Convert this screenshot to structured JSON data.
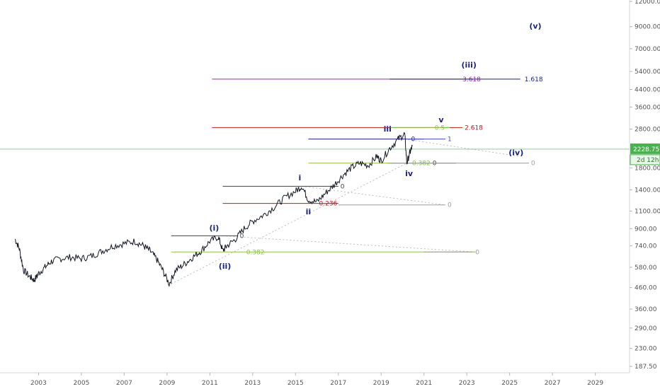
{
  "chart_data": {
    "type": "line",
    "x_axis": {
      "type": "year",
      "range": [
        2001.2,
        2030.6
      ],
      "ticks": [
        {
          "v": 2003,
          "label": "2003"
        },
        {
          "v": 2005,
          "label": "2005"
        },
        {
          "v": 2007,
          "label": "2007"
        },
        {
          "v": 2009,
          "label": "2009"
        },
        {
          "v": 2011,
          "label": "2011"
        },
        {
          "v": 2013,
          "label": "2013"
        },
        {
          "v": 2015,
          "label": "2015"
        },
        {
          "v": 2017,
          "label": "2017"
        },
        {
          "v": 2019,
          "label": "2019"
        },
        {
          "v": 2021,
          "label": "2021"
        },
        {
          "v": 2023,
          "label": "2023"
        },
        {
          "v": 2025,
          "label": "2025"
        },
        {
          "v": 2027,
          "label": "2027"
        },
        {
          "v": 2029,
          "label": "2029"
        }
      ]
    },
    "y_axis": {
      "scale": "log",
      "position": "right",
      "range": [
        180,
        12000
      ],
      "ticks": [
        {
          "v": 12000,
          "label": "12000.00"
        },
        {
          "v": 9000,
          "label": "9000.00"
        },
        {
          "v": 7000,
          "label": "7000.00"
        },
        {
          "v": 5400,
          "label": "5400.00"
        },
        {
          "v": 4400,
          "label": "4400.00"
        },
        {
          "v": 3600,
          "label": "3600.00"
        },
        {
          "v": 2800,
          "label": "2800.00"
        },
        {
          "v": 1800,
          "label": "1800.00"
        },
        {
          "v": 1400,
          "label": "1400.00"
        },
        {
          "v": 1100,
          "label": "1100.00"
        },
        {
          "v": 900,
          "label": "900.00"
        },
        {
          "v": 740,
          "label": "740.00"
        },
        {
          "v": 580,
          "label": "580.00"
        },
        {
          "v": 460,
          "label": "460.00"
        },
        {
          "v": 360,
          "label": "360.00"
        },
        {
          "v": 290,
          "label": "290.00"
        },
        {
          "v": 230,
          "label": "230.00"
        },
        {
          "v": 187.5,
          "label": "187.50"
        }
      ]
    },
    "series": [
      {
        "color": "#131722",
        "points": [
          [
            2001.9,
            800
          ],
          [
            2002.1,
            720
          ],
          [
            2002.3,
            560
          ],
          [
            2002.6,
            520
          ],
          [
            2002.8,
            500
          ],
          [
            2003.0,
            540
          ],
          [
            2003.3,
            580
          ],
          [
            2003.6,
            620
          ],
          [
            2004.0,
            640
          ],
          [
            2004.5,
            650
          ],
          [
            2005.0,
            640
          ],
          [
            2005.5,
            660
          ],
          [
            2006.0,
            700
          ],
          [
            2006.5,
            740
          ],
          [
            2007.0,
            760
          ],
          [
            2007.5,
            780
          ],
          [
            2007.9,
            740
          ],
          [
            2008.2,
            700
          ],
          [
            2008.5,
            640
          ],
          [
            2008.8,
            560
          ],
          [
            2009.1,
            480
          ],
          [
            2009.4,
            560
          ],
          [
            2009.8,
            600
          ],
          [
            2010.2,
            650
          ],
          [
            2010.6,
            700
          ],
          [
            2011.0,
            780
          ],
          [
            2011.4,
            820
          ],
          [
            2011.6,
            700
          ],
          [
            2011.8,
            740
          ],
          [
            2012.2,
            800
          ],
          [
            2012.6,
            900
          ],
          [
            2013.0,
            980
          ],
          [
            2013.5,
            1050
          ],
          [
            2014.0,
            1150
          ],
          [
            2014.5,
            1280
          ],
          [
            2015.0,
            1380
          ],
          [
            2015.3,
            1460
          ],
          [
            2015.6,
            1250
          ],
          [
            2016.0,
            1220
          ],
          [
            2016.4,
            1350
          ],
          [
            2016.8,
            1480
          ],
          [
            2017.2,
            1650
          ],
          [
            2017.6,
            1800
          ],
          [
            2018.0,
            1900
          ],
          [
            2018.4,
            1850
          ],
          [
            2018.8,
            2050
          ],
          [
            2019.0,
            1950
          ],
          [
            2019.4,
            2250
          ],
          [
            2019.8,
            2500
          ],
          [
            2020.1,
            2650
          ],
          [
            2020.2,
            1900
          ],
          [
            2020.35,
            2150
          ],
          [
            2020.45,
            2300
          ]
        ]
      }
    ],
    "current_price": {
      "label": "2228.75",
      "value": 2228.75,
      "countdown": "2d 12h",
      "color": "#4caf50"
    },
    "levels": [
      {
        "price": 4950,
        "x1": 2011.1,
        "x2": 2023.3,
        "color": "#9c27b0",
        "label": "3.618",
        "label_x": 2022.7
      },
      {
        "price": 4950,
        "x1": 2019.4,
        "x2": 2025.5,
        "color": "#1a237e",
        "label": "1.618",
        "label_x": 2025.6
      },
      {
        "price": 2850,
        "x1": 2011.1,
        "x2": 2022.8,
        "color": "#b71c1c",
        "label": "2.618",
        "label_x": 2022.8
      },
      {
        "price": 2850,
        "x1": 2019.4,
        "x2": 2022.2,
        "color": "#8bc34a",
        "label": "0.5",
        "label_x": 2021.4
      },
      {
        "price": 2500,
        "x1": 2015.6,
        "x2": 2021.0,
        "color": "#1a237e",
        "label": "0",
        "label_x": 2020.3
      },
      {
        "price": 2500,
        "x1": 2020.1,
        "x2": 2022.0,
        "color": "#3f51b5",
        "label": "1",
        "label_x": 2022.0
      },
      {
        "price": 1900,
        "x1": 2019.3,
        "x2": 2022.5,
        "color": "#424242",
        "label": "0",
        "label_x": 2021.3
      },
      {
        "price": 1900,
        "x1": 2015.6,
        "x2": 2021.5,
        "color": "#8bc34a",
        "label": "0.382",
        "label_x": 2020.35
      },
      {
        "price": 1900,
        "x1": 2019.4,
        "x2": 2025.9,
        "color": "#9e9e9e",
        "label": "0",
        "label_x": 2025.9
      },
      {
        "price": 1460,
        "x1": 2011.6,
        "x2": 2017.0,
        "color": "#424242",
        "label": "0",
        "label_x": 2017.0
      },
      {
        "price": 1200,
        "x1": 2011.6,
        "x2": 2017.0,
        "color": "#b71c1c",
        "label": "0.236",
        "label_x": 2016.0
      },
      {
        "price": 1180,
        "x1": 2017.0,
        "x2": 2022.0,
        "color": "#9e9e9e",
        "label": "0",
        "label_x": 2022.0
      },
      {
        "price": 830,
        "x1": 2009.2,
        "x2": 2012.3,
        "color": "#424242",
        "label": "0",
        "label_x": 2012.3
      },
      {
        "price": 690,
        "x1": 2009.2,
        "x2": 2023.4,
        "color": "#8bc34a",
        "label": "0.382",
        "label_x": 2012.6
      },
      {
        "price": 690,
        "x1": 2021.0,
        "x2": 2023.3,
        "color": "#9e9e9e",
        "label": "0",
        "label_x": 2023.3
      }
    ],
    "wave_labels": [
      {
        "text": "(v)",
        "x": 2026.2,
        "price": 8800
      },
      {
        "text": "(iii)",
        "x": 2023.1,
        "price": 5650
      },
      {
        "text": "v",
        "x": 2021.8,
        "price": 3020
      },
      {
        "text": "iii",
        "x": 2019.3,
        "price": 2720
      },
      {
        "text": "(iv)",
        "x": 2025.3,
        "price": 2080
      },
      {
        "text": "iv",
        "x": 2020.3,
        "price": 1640
      },
      {
        "text": "i",
        "x": 2015.2,
        "price": 1560
      },
      {
        "text": "ii",
        "x": 2015.6,
        "price": 1060
      },
      {
        "text": "(i)",
        "x": 2011.2,
        "price": 880
      },
      {
        "text": "(ii)",
        "x": 2011.7,
        "price": 570
      }
    ],
    "dashed_lines": [
      {
        "x1": 2009.2,
        "p1": 480,
        "x2": 2020.2,
        "p2": 1900
      },
      {
        "x1": 2011.6,
        "p1": 830,
        "x2": 2023.4,
        "p2": 690
      },
      {
        "x1": 2015.3,
        "p1": 1460,
        "x2": 2022.0,
        "p2": 1180
      },
      {
        "x1": 2020.1,
        "p1": 2500,
        "x2": 2025.5,
        "p2": 2050
      }
    ]
  }
}
